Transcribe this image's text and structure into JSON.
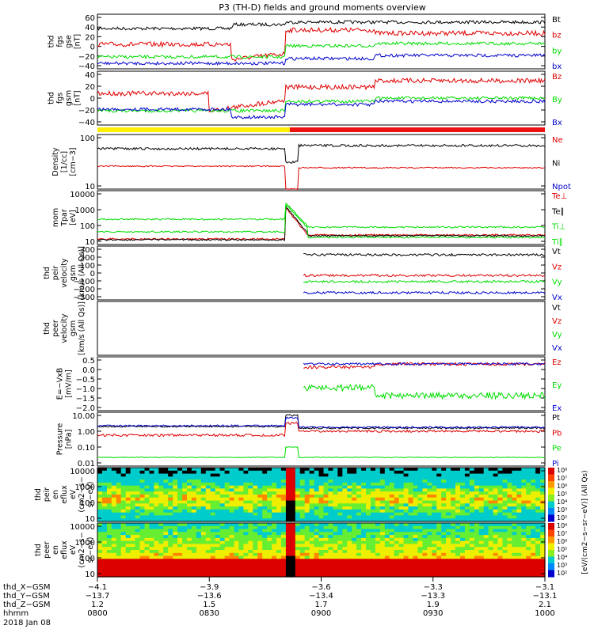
{
  "title": "P3 (TH-D) fields and ground moments overview",
  "colors": {
    "black": "#000000",
    "red": "#e00000",
    "green": "#00dd00",
    "blue": "#0000cc",
    "yellow": "#ffee00",
    "barred": "#ee1111"
  },
  "chart_data": {
    "type": "line",
    "time_range": [
      "0800",
      "1000"
    ],
    "panels": [
      {
        "id": "fgs_gse",
        "ylabel": [
          "thd",
          "fgs",
          "gse",
          "[nT]"
        ],
        "yticks": [
          "60",
          "40",
          "20",
          "0",
          "−20",
          "−40"
        ],
        "ylim": [
          -45,
          65
        ],
        "series": [
          {
            "name": "Bt",
            "color": "black"
          },
          {
            "name": "bz",
            "color": "red"
          },
          {
            "name": "by",
            "color": "green"
          },
          {
            "name": "bx",
            "color": "blue"
          }
        ]
      },
      {
        "id": "fgs_gsm",
        "ylabel": [
          "thd",
          "fgs",
          "gsm",
          "[nT]"
        ],
        "yticks": [
          "40",
          "20",
          "0",
          "−20",
          "−40"
        ],
        "ylim": [
          -50,
          45
        ],
        "series": [
          {
            "name": "Bz",
            "color": "red"
          },
          {
            "name": "By",
            "color": "green"
          },
          {
            "name": "Bx",
            "color": "blue"
          }
        ]
      },
      {
        "id": "density",
        "ylabel": [
          "Density",
          "[1/cc]",
          "[cm−3]"
        ],
        "yticks": [
          "100",
          "10"
        ],
        "log": true,
        "series": [
          {
            "name": "Ne",
            "color": "red"
          },
          {
            "name": "Ni",
            "color": "black"
          },
          {
            "name": "Npot",
            "color": "blue"
          }
        ]
      },
      {
        "id": "temp",
        "ylabel": [
          "mom",
          "Tpar",
          "[eV]"
        ],
        "yticks": [
          "10000",
          "1000",
          "100",
          "10"
        ],
        "log": true,
        "series": [
          {
            "name": "Te⊥",
            "color": "red"
          },
          {
            "name": "Te∥",
            "color": "black"
          },
          {
            "name": "Ti⊥",
            "color": "green"
          },
          {
            "name": "Ti∥",
            "color": "green"
          }
        ]
      },
      {
        "id": "peir_vel",
        "ylabel": [
          "thd",
          "peir",
          "velocity",
          "gsm",
          "[km/s (All Qs)]"
        ],
        "yticks": [
          "300",
          "200",
          "100",
          "0",
          "−100",
          "−200",
          "−300"
        ],
        "ylim": [
          -320,
          320
        ],
        "series": [
          {
            "name": "Vt",
            "color": "black"
          },
          {
            "name": "Vz",
            "color": "red"
          },
          {
            "name": "Vy",
            "color": "green"
          },
          {
            "name": "Vx",
            "color": "blue"
          }
        ]
      },
      {
        "id": "peer_vel",
        "ylabel": [
          "thd",
          "peer",
          "velocity",
          "gsm",
          "[km/s (All Qs)]"
        ],
        "yticks": [],
        "series": [
          {
            "name": "Vt",
            "color": "black"
          },
          {
            "name": "Vz",
            "color": "red"
          },
          {
            "name": "Vy",
            "color": "green"
          },
          {
            "name": "Vx",
            "color": "blue"
          }
        ]
      },
      {
        "id": "efield",
        "ylabel": [
          "E=−VxB",
          "[mV/m]"
        ],
        "yticks": [
          "0.5",
          "0.0",
          "−0.5",
          "−1.0",
          "−1.5",
          "−2.0"
        ],
        "ylim": [
          -2.2,
          0.6
        ],
        "series": [
          {
            "name": "Ez",
            "color": "red"
          },
          {
            "name": "Ey",
            "color": "green"
          },
          {
            "name": "Ex",
            "color": "blue"
          }
        ]
      },
      {
        "id": "pressure",
        "ylabel": [
          "Pressure",
          "[nPa]"
        ],
        "yticks": [
          "10.00",
          "1.00",
          "0.10",
          "0.01"
        ],
        "log": true,
        "series": [
          {
            "name": "Pt",
            "color": "black"
          },
          {
            "name": "Pb",
            "color": "red"
          },
          {
            "name": "Pe",
            "color": "green"
          },
          {
            "name": "Pi",
            "color": "blue"
          }
        ]
      },
      {
        "id": "peir_en",
        "ylabel": [
          "thd",
          "peir",
          "en",
          "eflux",
          "eV",
          "(cm2−s−",
          "sr−eV)"
        ],
        "yticks": [
          "10000",
          "1000",
          "100",
          "10"
        ]
      },
      {
        "id": "peer_en",
        "ylabel": [
          "thd",
          "peer",
          "en",
          "eflux",
          "eV",
          "(cm2−s−",
          "sr−eV)"
        ],
        "yticks": [
          "10000",
          "1000",
          "100",
          "10"
        ]
      }
    ],
    "colorbar": {
      "label": "[eV/(cm2−s−sr−eV)] (All Qs)",
      "ticks": [
        "10⁸",
        "10⁷",
        "10⁶",
        "10⁵",
        "10⁴",
        "10³",
        "10²",
        "10⁸",
        "10⁷",
        "10⁶",
        "10⁵",
        "10⁴",
        "10³",
        "10²"
      ]
    },
    "x_axis": {
      "rows": [
        {
          "label": "thd_X−GSM",
          "values": [
            "−4.1",
            "−3.9",
            "−3.6",
            "−3.3",
            "−3.1"
          ]
        },
        {
          "label": "thd_Y−GSM",
          "values": [
            "−13.7",
            "−13.6",
            "−13.4",
            "−13.3",
            "−13.1"
          ]
        },
        {
          "label": "thd_Z−GSM",
          "values": [
            "1.2",
            "1.5",
            "1.7",
            "1.9",
            "2.1"
          ]
        },
        {
          "label": "hhmm",
          "values": [
            "0800",
            "0830",
            "0900",
            "0930",
            "1000"
          ]
        }
      ],
      "date": "2018 Jan 08"
    }
  }
}
